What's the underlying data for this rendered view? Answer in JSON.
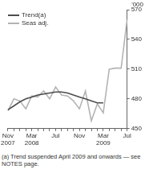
{
  "chart_data": {
    "type": "line",
    "y_label": "'000",
    "footnote": "(a) Trend suspended April 2009 and onwards — see NOTES page.",
    "categories": [
      "Nov 2007",
      null,
      null,
      null,
      "Mar 2008",
      null,
      null,
      null,
      "Jul",
      null,
      null,
      null,
      "Nov",
      null,
      null,
      null,
      "Mar 2009",
      null,
      null,
      null,
      "Jul"
    ],
    "series": [
      {
        "name": "Trend(a)",
        "color": "#4d4d4d",
        "values": [
          469,
          473,
          477,
          480,
          482,
          484,
          485,
          486,
          487,
          487,
          486,
          484,
          482,
          480,
          478,
          476,
          476,
          null,
          null,
          null,
          null
        ]
      },
      {
        "name": "Seas adj.",
        "color": "#b3b3b3",
        "values": [
          468,
          480,
          478,
          470,
          483,
          482,
          488,
          480,
          492,
          484,
          483,
          478,
          470,
          488,
          458,
          475,
          466,
          510,
          511,
          511,
          560
        ]
      }
    ],
    "ylim": [
      450,
      570
    ],
    "yticks": [
      450,
      480,
      510,
      540,
      570
    ],
    "grid": false,
    "legend": "upper left"
  }
}
